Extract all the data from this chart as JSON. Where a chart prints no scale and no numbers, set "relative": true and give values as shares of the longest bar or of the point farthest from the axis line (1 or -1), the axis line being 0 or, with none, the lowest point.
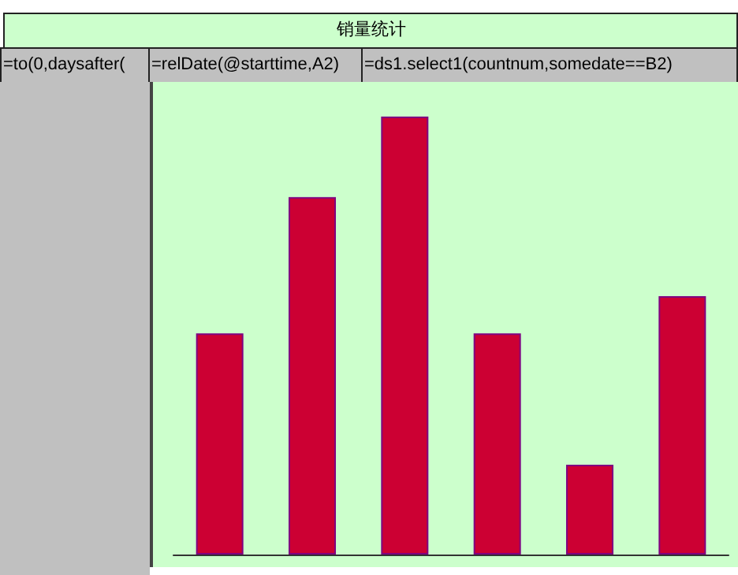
{
  "chart_data": {
    "type": "bar",
    "title": "销量统计",
    "annotations": [
      "=to(0,daysafter(",
      "=relDate(@starttime,A2)",
      "=ds1.select1(countnum,somedate==B2)"
    ],
    "categories": [
      null,
      null,
      null,
      null,
      null,
      null
    ],
    "values": [
      0.505,
      0.816,
      1,
      0.505,
      0.205,
      0.59
    ],
    "color": "#cc0033",
    "relative": true
  }
}
